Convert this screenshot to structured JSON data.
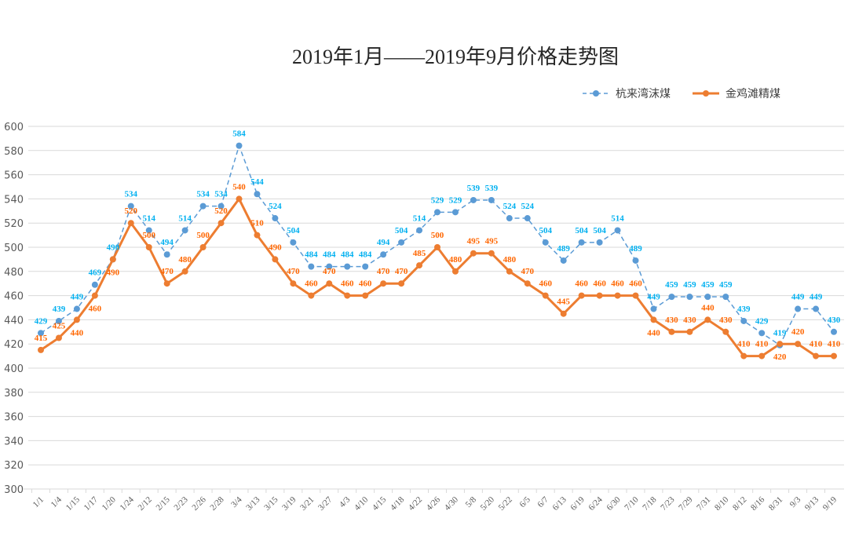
{
  "chart_data": {
    "type": "line",
    "title": "2019年1月——2019年9月价格走势图",
    "xlabel": "",
    "ylabel": "",
    "ylim": [
      300,
      600
    ],
    "yticks": [
      300,
      320,
      340,
      360,
      380,
      400,
      420,
      440,
      460,
      480,
      500,
      520,
      540,
      560,
      580,
      600
    ],
    "grid": true,
    "legend_position": "top-right",
    "categories": [
      "1/1",
      "1/4",
      "1/15",
      "1/17",
      "1/20",
      "1/24",
      "2/12",
      "2/15",
      "2/23",
      "2/26",
      "2/28",
      "3/4",
      "3/13",
      "3/15",
      "3/19",
      "3/21",
      "3/27",
      "4/3",
      "4/10",
      "4/15",
      "4/18",
      "4/22",
      "4/26",
      "4/30",
      "5/8",
      "5/20",
      "5/22",
      "6/5",
      "6/7",
      "6/13",
      "6/19",
      "6/24",
      "6/30",
      "7/10",
      "7/18",
      "7/23",
      "7/29",
      "7/31",
      "8/10",
      "8/12",
      "8/16",
      "8/31",
      "9/3",
      "9/13",
      "9/19"
    ],
    "series": [
      {
        "name": "杭来湾沫煤",
        "color": "#5b9bd5",
        "label_color": "#00b0f0",
        "style": "dashed",
        "values": [
          429,
          439,
          449,
          469,
          490,
          534,
          514,
          494,
          514,
          534,
          534,
          584,
          544,
          524,
          504,
          484,
          484,
          484,
          484,
          494,
          504,
          514,
          529,
          529,
          539,
          539,
          524,
          524,
          504,
          489,
          504,
          504,
          514,
          489,
          449,
          459,
          459,
          459,
          459,
          439,
          429,
          419,
          449,
          449,
          430
        ]
      },
      {
        "name": "金鸡滩精煤",
        "color": "#ed7d31",
        "label_color": "#ff6600",
        "style": "solid",
        "values": [
          415,
          425,
          440,
          460,
          490,
          520,
          500,
          470,
          480,
          500,
          520,
          540,
          510,
          490,
          470,
          460,
          470,
          460,
          460,
          470,
          470,
          485,
          500,
          480,
          495,
          495,
          480,
          470,
          460,
          445,
          460,
          460,
          460,
          460,
          440,
          430,
          430,
          440,
          430,
          410,
          410,
          420,
          420,
          410,
          410
        ]
      }
    ]
  }
}
